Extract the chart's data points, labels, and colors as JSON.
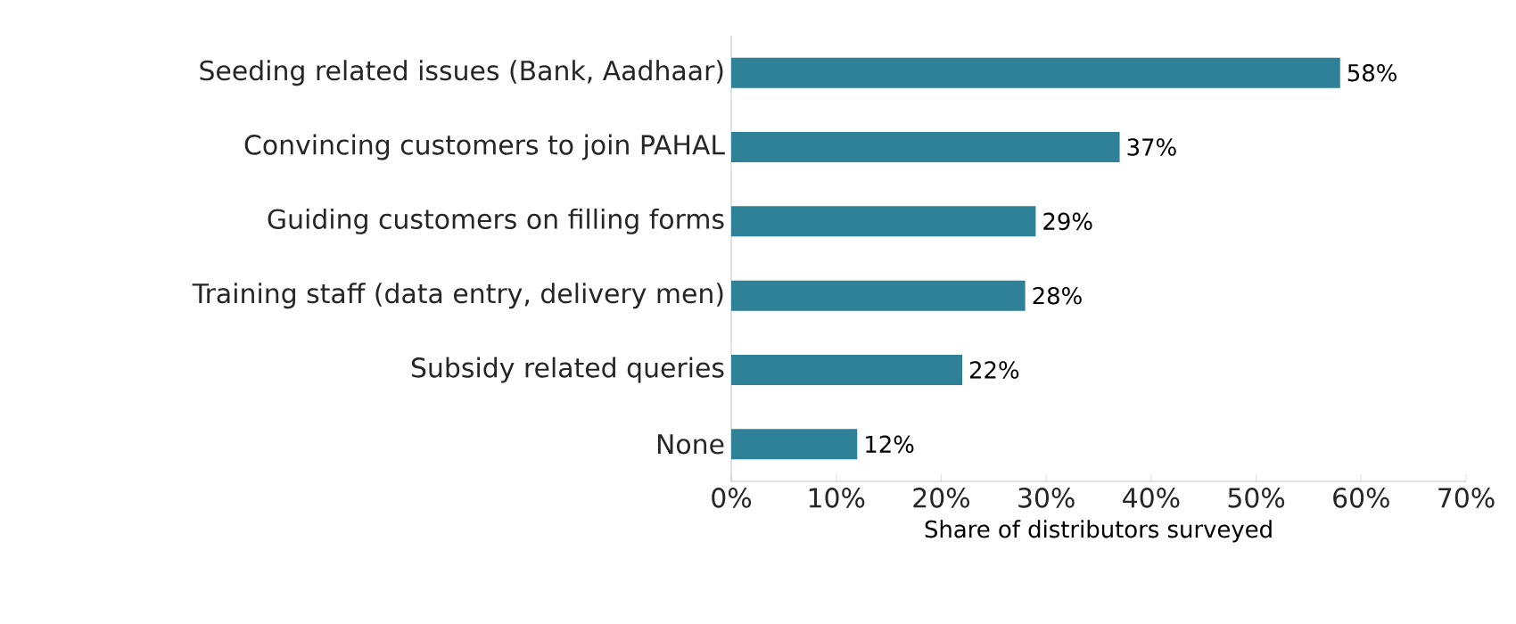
{
  "chart_data": {
    "type": "bar",
    "orientation": "horizontal",
    "xlabel": "Share of distributors surveyed",
    "categories": [
      "Seeding related issues (Bank, Aadhaar)",
      "Convincing customers to join PAHAL",
      "Guiding customers on filling forms",
      "Training staff (data entry, delivery men)",
      "Subsidy related queries",
      "None"
    ],
    "values": [
      58,
      37,
      29,
      28,
      22,
      12
    ],
    "value_labels": [
      "58%",
      "37%",
      "29%",
      "28%",
      "22%",
      "12%"
    ],
    "color": "#2e8196",
    "xlim": [
      0,
      70
    ],
    "xticks": [
      {
        "value": 0,
        "label": "0%"
      },
      {
        "value": 10,
        "label": "10%"
      },
      {
        "value": 20,
        "label": "20%"
      },
      {
        "value": 30,
        "label": "30%"
      },
      {
        "value": 40,
        "label": "40%"
      },
      {
        "value": 50,
        "label": "50%"
      },
      {
        "value": 60,
        "label": "60%"
      },
      {
        "value": 70,
        "label": "70%"
      }
    ],
    "grid": false
  }
}
